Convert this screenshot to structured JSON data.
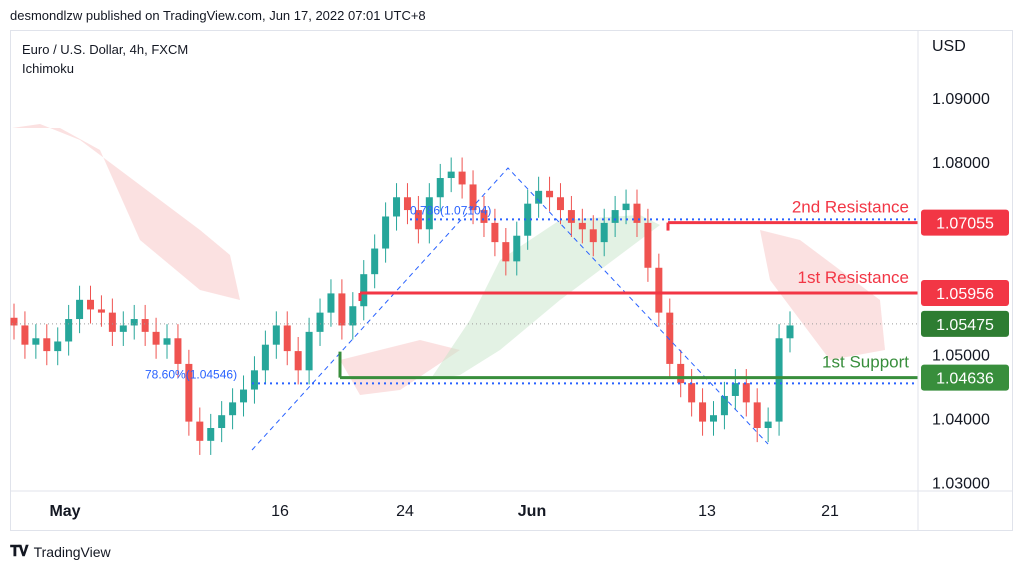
{
  "header": {
    "published_text": "desmondlzw published on TradingView.com, Jun 17, 2022 07:01 UTC+8"
  },
  "symbol": {
    "title": "Euro / U.S. Dollar, 4h, FXCM",
    "indicator": "Ichimoku",
    "currency": "USD"
  },
  "footer": {
    "brand": "TradingView",
    "logo_icon": "tradingview-logo-icon"
  },
  "colors": {
    "up": "#26a69a",
    "down": "#ef5350",
    "resistance": "#f23645",
    "support": "#388e3c",
    "fib": "#2962ff",
    "current": "#2e7d32"
  },
  "chart_data": {
    "type": "candlestick",
    "y_ticks": [
      "1.09000",
      "1.08000",
      "1.05000",
      "1.04000",
      "1.03000"
    ],
    "y_tick_values": [
      1.09,
      1.08,
      1.05,
      1.04,
      1.03
    ],
    "ylim": [
      1.0292,
      1.1
    ],
    "x_ticks": [
      "May",
      "16",
      "24",
      "Jun",
      "13",
      "21"
    ],
    "levels": [
      {
        "name": "2nd Resistance",
        "value": 1.07055,
        "label": "1.07055",
        "color": "#f23645"
      },
      {
        "name": "1st Resistance",
        "value": 1.05956,
        "label": "1.05956",
        "color": "#f23645"
      },
      {
        "name": "1st Support",
        "value": 1.04636,
        "label": "1.04636",
        "color": "#388e3c"
      }
    ],
    "current_price": {
      "value": 1.05475,
      "label": "1.05475"
    },
    "fib_levels": [
      {
        "label": "0.786(1.07104)",
        "value": 1.07104
      },
      {
        "label": "78.60%(1.04546)",
        "value": 1.04546
      }
    ],
    "price_path": [
      1.0545,
      1.0515,
      1.0525,
      1.0505,
      1.052,
      1.0555,
      1.0585,
      1.057,
      1.0565,
      1.0535,
      1.0545,
      1.0555,
      1.0535,
      1.0515,
      1.0525,
      1.0485,
      1.0395,
      1.0365,
      1.0385,
      1.0405,
      1.0425,
      1.0445,
      1.0475,
      1.0515,
      1.0545,
      1.0505,
      1.0475,
      1.0535,
      1.0565,
      1.0595,
      1.0545,
      1.0575,
      1.0625,
      1.0665,
      1.0715,
      1.0745,
      1.0725,
      1.0695,
      1.0745,
      1.0775,
      1.0785,
      1.0765,
      1.0725,
      1.0705,
      1.0675,
      1.0645,
      1.0685,
      1.0735,
      1.0755,
      1.0745,
      1.0725,
      1.0705,
      1.0695,
      1.0675,
      1.0705,
      1.0725,
      1.0735,
      1.0705,
      1.0635,
      1.0565,
      1.0485,
      1.0455,
      1.0425,
      1.0395,
      1.0405,
      1.0435,
      1.0455,
      1.0425,
      1.0385,
      1.0395,
      1.0525,
      1.0545
    ]
  }
}
